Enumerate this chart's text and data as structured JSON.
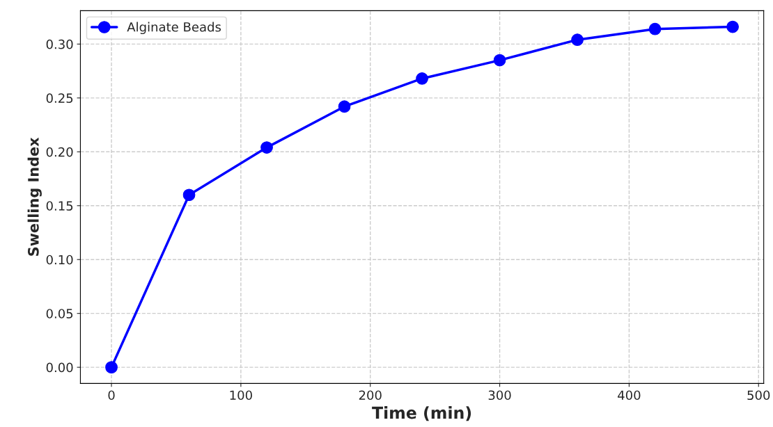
{
  "chart_data": {
    "type": "line",
    "xlabel": "Time (min)",
    "ylabel": "Swelling Index",
    "x": [
      0,
      60,
      120,
      180,
      240,
      300,
      360,
      420,
      480
    ],
    "series": [
      {
        "name": "Alginate Beads",
        "color": "#0000ff",
        "values": [
          0.0,
          0.16,
          0.204,
          0.242,
          0.268,
          0.285,
          0.304,
          0.314,
          0.316
        ]
      }
    ],
    "xlim": [
      -24,
      504
    ],
    "xticks": [
      0,
      100,
      200,
      300,
      400,
      500
    ],
    "ylim": [
      -0.015,
      0.331
    ],
    "yticks": [
      {
        "value": 0,
        "label": "0.00"
      },
      {
        "value": 0.05,
        "label": "0.05"
      },
      {
        "value": 0.1,
        "label": "0.10"
      },
      {
        "value": 0.15,
        "label": "0.15"
      },
      {
        "value": 0.2,
        "label": "0.20"
      },
      {
        "value": 0.25,
        "label": "0.25"
      },
      {
        "value": 0.3,
        "label": "0.30"
      }
    ],
    "grid": true,
    "legend": "top left",
    "marker": "circle",
    "line_style": "solid"
  }
}
